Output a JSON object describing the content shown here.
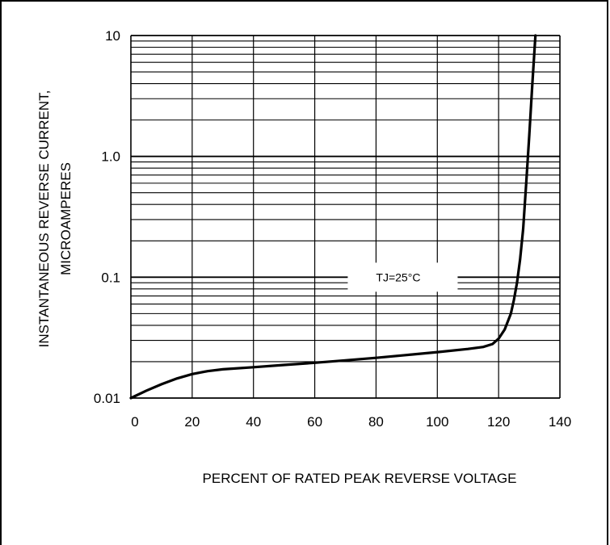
{
  "chart_data": {
    "type": "line",
    "title": "",
    "xlabel": "PERCENT OF RATED PEAK REVERSE VOLTAGE",
    "ylabel_line1": "INSTANTANEOUS  REVERSE  CURRENT,",
    "ylabel_line2": "MICROAMPERES",
    "x_scale": "linear",
    "y_scale": "log",
    "xlim": [
      0,
      140
    ],
    "ylim": [
      0.01,
      10
    ],
    "grid": true,
    "x_ticks": [
      0,
      20,
      40,
      60,
      80,
      100,
      120,
      140
    ],
    "x_tick_labels": [
      "0",
      "20",
      "40",
      "60",
      "80",
      "100",
      "120",
      "140"
    ],
    "y_ticks": [
      0.01,
      0.1,
      1,
      10
    ],
    "y_tick_labels": [
      "0.01",
      "0.1",
      "1.0",
      "10"
    ],
    "annotation": {
      "text": "TJ=25°C",
      "x": 80,
      "y": 0.1
    },
    "series": [
      {
        "x": [
          0,
          5,
          10,
          15,
          20,
          25,
          30,
          40,
          50,
          60,
          70,
          80,
          90,
          100,
          110,
          115,
          118,
          120,
          122,
          124,
          125,
          126,
          127,
          128,
          129,
          130,
          131,
          132
        ],
        "y": [
          0.01,
          0.0115,
          0.013,
          0.0145,
          0.0158,
          0.0167,
          0.0173,
          0.018,
          0.0188,
          0.0196,
          0.0205,
          0.0215,
          0.0227,
          0.024,
          0.0255,
          0.0265,
          0.028,
          0.031,
          0.037,
          0.05,
          0.065,
          0.09,
          0.14,
          0.25,
          0.6,
          1.5,
          4.0,
          10.0
        ]
      }
    ]
  },
  "colors": {
    "line": "#000000",
    "grid": "#000000",
    "background": "#ffffff"
  }
}
